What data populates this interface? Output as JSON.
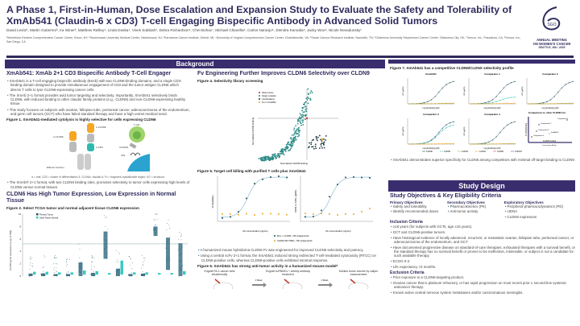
{
  "header": {
    "title": "A Phase 1, First-in-Human, Dose Escalation and Expansion Study to Evaluate the Safety and Tolerability of XmAb541 (Claudin-6 x CD3) T-cell Engaging Bispecific Antibody in Advanced Solid Tumors",
    "authors": "David Levitz¹, Martin Gutierrez², Ira Winer³, Matthew Reilley⁴, Linda Duska⁴, Vivek Subbiah⁵, Debra Richardson⁶, Chet Bohac⁷, Michael Chiarella⁸, Carlos Naranjo⁸, Jitendra Kanodia⁸, Jacky Woo⁸, Nicole Nevadunsky¹",
    "affiliations": "¹Montefiore Einstein Comprehensive Cancer Center, Bronx, NY; ²Hackensack University Medical Center, Hackensack, NJ; ³Karmanos Cancer Institute, Detroit, MI; ⁴University of Virginia Comprehensive Cancer Center, Charlottesville, VA; ⁵Sarah Cannon Research Institute, Nashville, TN; ⁶Oklahoma University Stephenson Cancer Center, Oklahoma City, OK; ⁷Xencor, Inc., Pasadena, CA; ⁸Xencor, Inc., San Diego, CA",
    "logo": {
      "mark": "SGO",
      "line1": "ANNUAL MEETING",
      "line2": "ON WOMEN'S CANCER",
      "line3": "SEATTLE, WA • 2025"
    }
  },
  "colors": {
    "primary": "#3a2d6e",
    "teal": "#2b8a85",
    "dark_teal": "#1f4e5f",
    "orange": "#f5a623",
    "cyan": "#3cc8c0"
  },
  "background": {
    "bar": "Background",
    "s1": {
      "title": "XmAb541: XmAb 2+1 CD3 Bispecific Antibody T-Cell Engager",
      "bullets": [
        "XmAb541 is a T-cell engaging bispecific antibody (BsAb) with two CLDN6-binding domains, and a single CD3-binding domain designed to provide simultaneous engagement of CD3 and the tumor antigen CLDN6 which directs T cells to lyse CLDN6-expressing cancer cells.",
        "The XmAb 2+1 format provides avid tumor targeting and selectivity. Importantly, XmAb541 selectively binds CLDN6, with reduced binding to other claudin family proteins (e.g., CLDN9) and non-CLDN6-expressing healthy tissue.",
        "This study focuses on subjects with ovarian, fallopian tube, peritoneal cancer, adenocarcinoma of the endometrium, and germ cell tumors (GCT) who have failed standard therapy and have a high unmet medical need."
      ],
      "fig1": "Figure 1. XmAb541-mediated cytolysis is highly selective for cells expressing CLDN6",
      "fig1_labels": {
        "a_cldn6_left": "α-CLDN6",
        "a_cldn6_right": "α-CLDN6",
        "a_cd3": "α-CD3",
        "effector": "Effector function",
        "ko": "KO, Xtend Fc",
        "tcell": "T cell",
        "xmab": "XmAb541",
        "cd3": "CD3",
        "cldn6_cell": "CLDN6+ cell"
      },
      "fig1_note": "α = anti; CD3 = cluster of differentiation 3; CLDN6= claudin-6; Fc = fragment crystallizable region; KO = knockout.",
      "bullet_after": "The XmAb® 2+1 format, with two CLDN6 binding sites, promotes selectivity to tumor cells expressing high levels of CLDN6 versus normal tissues."
    },
    "s2": {
      "title": "CLDN6 Has High Tumor Expression, Low Expression in Normal Tissue",
      "fig2": "Figure 2. Select TCGA tumor and normal adjacent tissue CLDN6 expression",
      "legend": [
        "Primary Tumor",
        "Solid Tissue Normal"
      ],
      "ylabel": "CLDN6 gene expression (Log² [TPM])",
      "yticks": [
        "0",
        "2",
        "4",
        "6",
        "8",
        "10"
      ]
    },
    "s3": {
      "title": "Fv Engineering Further Improves CLDN6 Selectivity over CLDN9",
      "fig4": "Figure 4. Selectivity library screening",
      "legend": [
        "Parent clone",
        "Single mutation",
        "Combinations",
        "Fv in XmAb541"
      ],
      "xlabel": "Normalized CLDN9 binding",
      "ylabel": "Normalized CLDN6 binding",
      "fig5": "Figure 5. Target cell killing with purified T cells plus XmAb541",
      "f5_ylabel_left": "% Dead/dec+",
      "f5_ylabel_right": "CD69 on CD8+ (gMFI)",
      "f5_xlabel": "Ab concentration (ng/mL)",
      "f5_legend": [
        "PA-1 + CLDN6 ~70K antigens/cell",
        "CLDN9 293-TREX ~70K antigens/cell"
      ],
      "bullets": [
        "A humanized mouse hybridoma CLDN6 Fv was engineered for improved CLDN6 selectivity and potency.",
        "Using a central scFv 2+1 format, the XmAb541 induced strong redirected T-cell-mediated cytotoxicity (RTCC) on CLDN6-positive cells, whereas CLDN9-positive cells exhibited minimal response."
      ],
      "fig6": "Figure 6. XmAb541 has strong anti-tumor activity in a humanized mouse model*",
      "steps": [
        "Engraft PA-1 cancer cells intradermally",
        "Engraft huPBMCs + weekly antibody treatment",
        "Monitor tumor volume by caliper measurement"
      ],
      "arrow": "1 Week"
    }
  },
  "fig7": {
    "title": "Figure 7. XmAb541 has a competitive CLDN6/CLDNX selectivity profile",
    "panels": [
      "XmAb541",
      "Comparator 1",
      "Comparator 2",
      "Comparator 3",
      "Comparator 4"
    ],
    "ylabel": "MFI (gMFI)",
    "xlabel": "Log [Antibody] (pM)",
    "compare_title": "Comparison to other CLDN6 Fvs",
    "compare_y": "CLDN6 binding",
    "compare_x": "CLDN9 binding",
    "compare_x2": "Increasing affinity",
    "compare_points": [
      "Comparator 1",
      "Comparator 2",
      "Comparator 3",
      "Comparator 4",
      "XmAb541"
    ],
    "legend": [
      "CLDN6",
      "CLDN9",
      "CLDN3",
      "CLDN4",
      "CLDN8",
      "CLDN17"
    ],
    "bullet": "XmAb541 demonstrates superior specificity for CLDN6 among competitors with minimal off-target binding to CLDN9."
  },
  "study": {
    "bar": "Study Design",
    "title": "Study Objectives & Key Eligibility Criteria",
    "objectives": [
      {
        "head": "Primary Objectives",
        "items": [
          "Safety and tolerability",
          "Identify recommended doses"
        ]
      },
      {
        "head": "Secondary Objectives",
        "items": [
          "Pharmacokinetics (PK)",
          "Anti-tumor activity"
        ]
      },
      {
        "head": "Exploratory Objectives",
        "items": [
          "Peripheral pharmacodynamics (PD)",
          "ctDNA",
          "CLDN6 expression"
        ]
      }
    ],
    "inclusion_head": "Inclusion Criteria",
    "inclusion": [
      "≥18 years (for subjects with GCTs, age ≥15 years).",
      "GCT and CLDN6-positive tumors.",
      "Have histological evidence of locally advanced, recurrent, or metastatic ovarian, fallopian tube, peritoneal cancer, or adenocarcinoma of the endometrium, and GCT",
      "Have documented progressive disease on standard-of-care therapies; exhausted therapies with a survival benefit, or the standard therapy has no survival benefit or proven to be ineffective, intolerable, or subject is not a candidate for such available therapy.",
      "ECOG 0-2.",
      "Life expectancy >3 months."
    ],
    "exclusion_head": "Exclusion Criteria",
    "exclusion": [
      "Prior exposure to a CLDN6-targeting product.",
      "Ovarian cancer that is platinum refractory, or has rapid progression on most recent prior ≥ second-line systemic anticancer therapy.",
      "Known active central nervous system metastases and/or carcinomatous meningitis."
    ]
  }
}
